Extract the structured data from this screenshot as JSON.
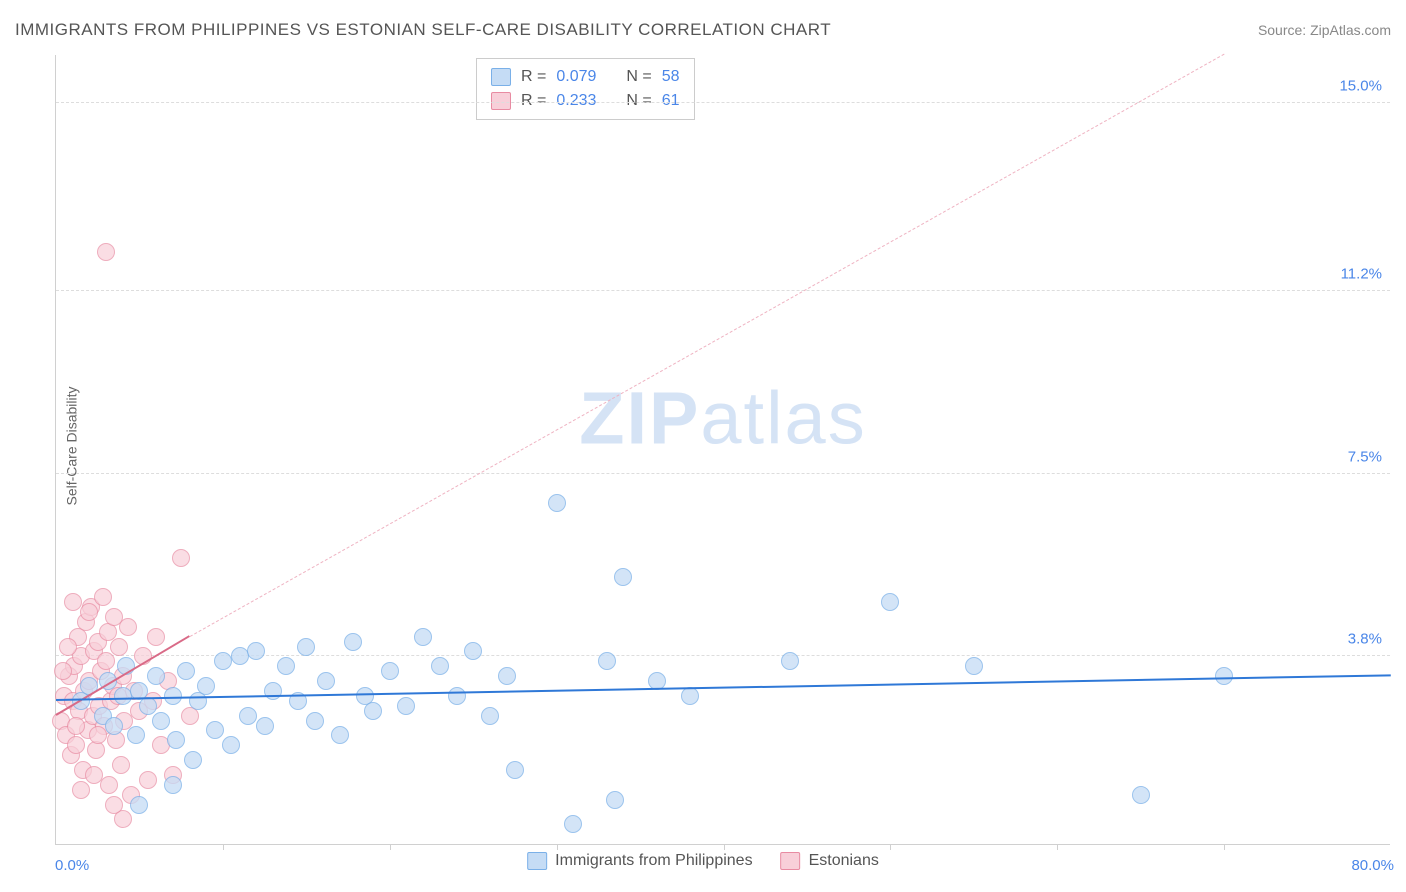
{
  "header": {
    "title": "IMMIGRANTS FROM PHILIPPINES VS ESTONIAN SELF-CARE DISABILITY CORRELATION CHART",
    "source_prefix": "Source: ",
    "source_name": "ZipAtlas.com"
  },
  "chart": {
    "type": "scatter",
    "y_label": "Self-Care Disability",
    "background_color": "#ffffff",
    "grid_color": "#dddddd",
    "border_color": "#d0d0d0",
    "xlim": [
      0,
      80.0
    ],
    "ylim": [
      0,
      16.0
    ],
    "x_origin_label": "0.0%",
    "x_max_label": "80.0%",
    "x_tick_positions_pct": [
      12.5,
      25,
      37.5,
      50,
      62.5,
      75,
      87.5
    ],
    "y_ticks": [
      {
        "value": 3.8,
        "label": "3.8%"
      },
      {
        "value": 7.5,
        "label": "7.5%"
      },
      {
        "value": 11.2,
        "label": "11.2%"
      },
      {
        "value": 15.0,
        "label": "15.0%"
      }
    ],
    "tick_color": "#4a86e8",
    "watermark_text_a": "ZIP",
    "watermark_text_b": "atlas",
    "watermark_color": "#d5e3f5"
  },
  "series": {
    "blue": {
      "label": "Immigrants from Philippines",
      "fill": "#c5dcf5",
      "stroke": "#7ab0e8",
      "point_radius": 9,
      "opacity": 0.75,
      "trend": {
        "color": "#2f78d7",
        "width": 2.5,
        "dash": "solid",
        "x1": 0,
        "y1": 2.9,
        "x2": 80,
        "y2": 3.4,
        "extrapolate_dash": false
      },
      "r_value": "0.079",
      "n_value": "58",
      "points": [
        [
          1.5,
          2.9
        ],
        [
          2.0,
          3.2
        ],
        [
          2.8,
          2.6
        ],
        [
          3.1,
          3.3
        ],
        [
          3.5,
          2.4
        ],
        [
          4.0,
          3.0
        ],
        [
          4.2,
          3.6
        ],
        [
          4.8,
          2.2
        ],
        [
          5.0,
          3.1
        ],
        [
          5.5,
          2.8
        ],
        [
          6.0,
          3.4
        ],
        [
          6.3,
          2.5
        ],
        [
          7.0,
          3.0
        ],
        [
          7.2,
          2.1
        ],
        [
          7.8,
          3.5
        ],
        [
          8.2,
          1.7
        ],
        [
          8.5,
          2.9
        ],
        [
          9.0,
          3.2
        ],
        [
          9.5,
          2.3
        ],
        [
          10.0,
          3.7
        ],
        [
          10.5,
          2.0
        ],
        [
          11.0,
          3.8
        ],
        [
          11.5,
          2.6
        ],
        [
          12.0,
          3.9
        ],
        [
          12.5,
          2.4
        ],
        [
          13.0,
          3.1
        ],
        [
          13.8,
          3.6
        ],
        [
          14.5,
          2.9
        ],
        [
          15.0,
          4.0
        ],
        [
          15.5,
          2.5
        ],
        [
          16.2,
          3.3
        ],
        [
          17.0,
          2.2
        ],
        [
          17.8,
          4.1
        ],
        [
          18.5,
          3.0
        ],
        [
          19.0,
          2.7
        ],
        [
          20.0,
          3.5
        ],
        [
          21.0,
          2.8
        ],
        [
          22.0,
          4.2
        ],
        [
          23.0,
          3.6
        ],
        [
          24.0,
          3.0
        ],
        [
          25.0,
          3.9
        ],
        [
          26.0,
          2.6
        ],
        [
          27.0,
          3.4
        ],
        [
          27.5,
          1.5
        ],
        [
          30.0,
          6.9
        ],
        [
          31.0,
          0.4
        ],
        [
          33.0,
          3.7
        ],
        [
          34.0,
          5.4
        ],
        [
          36.0,
          3.3
        ],
        [
          38.0,
          3.0
        ],
        [
          33.5,
          0.9
        ],
        [
          44.0,
          3.7
        ],
        [
          50.0,
          4.9
        ],
        [
          55.0,
          3.6
        ],
        [
          65.0,
          1.0
        ],
        [
          70.0,
          3.4
        ],
        [
          7.0,
          1.2
        ],
        [
          5.0,
          0.8
        ]
      ]
    },
    "pink": {
      "label": "Estonians",
      "fill": "#f8cfd9",
      "stroke": "#e88ba2",
      "point_radius": 9,
      "opacity": 0.7,
      "trend": {
        "color": "#d96a87",
        "width": 2,
        "dash": "solid",
        "x1": 0,
        "y1": 2.6,
        "x2": 8,
        "y2": 4.2,
        "extrapolate_dash": true,
        "dash_color": "#efb3c2",
        "x2_ext": 70,
        "y2_ext": 16.0
      },
      "r_value": "0.233",
      "n_value": "61",
      "points": [
        [
          0.3,
          2.5
        ],
        [
          0.5,
          3.0
        ],
        [
          0.6,
          2.2
        ],
        [
          0.8,
          3.4
        ],
        [
          0.9,
          1.8
        ],
        [
          1.0,
          2.9
        ],
        [
          1.1,
          3.6
        ],
        [
          1.2,
          2.0
        ],
        [
          1.3,
          4.2
        ],
        [
          1.4,
          2.7
        ],
        [
          1.5,
          3.8
        ],
        [
          1.6,
          1.5
        ],
        [
          1.7,
          3.1
        ],
        [
          1.8,
          4.5
        ],
        [
          1.9,
          2.3
        ],
        [
          2.0,
          3.3
        ],
        [
          2.1,
          4.8
        ],
        [
          2.2,
          2.6
        ],
        [
          2.3,
          3.9
        ],
        [
          2.4,
          1.9
        ],
        [
          2.5,
          4.1
        ],
        [
          2.6,
          2.8
        ],
        [
          2.7,
          3.5
        ],
        [
          2.8,
          5.0
        ],
        [
          2.9,
          2.4
        ],
        [
          3.0,
          3.7
        ],
        [
          3.1,
          4.3
        ],
        [
          3.2,
          1.2
        ],
        [
          3.3,
          2.9
        ],
        [
          3.4,
          3.2
        ],
        [
          3.5,
          4.6
        ],
        [
          3.6,
          2.1
        ],
        [
          3.7,
          3.0
        ],
        [
          3.8,
          4.0
        ],
        [
          3.9,
          1.6
        ],
        [
          4.0,
          3.4
        ],
        [
          4.1,
          2.5
        ],
        [
          4.3,
          4.4
        ],
        [
          4.5,
          1.0
        ],
        [
          4.7,
          3.1
        ],
        [
          5.0,
          2.7
        ],
        [
          5.2,
          3.8
        ],
        [
          5.5,
          1.3
        ],
        [
          5.8,
          2.9
        ],
        [
          6.0,
          4.2
        ],
        [
          6.3,
          2.0
        ],
        [
          6.7,
          3.3
        ],
        [
          7.0,
          1.4
        ],
        [
          7.5,
          5.8
        ],
        [
          8.0,
          2.6
        ],
        [
          3.0,
          12.0
        ],
        [
          1.0,
          4.9
        ],
        [
          2.0,
          4.7
        ],
        [
          0.7,
          4.0
        ],
        [
          1.5,
          1.1
        ],
        [
          2.3,
          1.4
        ],
        [
          4.0,
          0.5
        ],
        [
          0.4,
          3.5
        ],
        [
          1.2,
          2.4
        ],
        [
          2.5,
          2.2
        ],
        [
          3.5,
          0.8
        ]
      ]
    }
  },
  "legend_labels": {
    "R": "R =",
    "N": "N ="
  }
}
